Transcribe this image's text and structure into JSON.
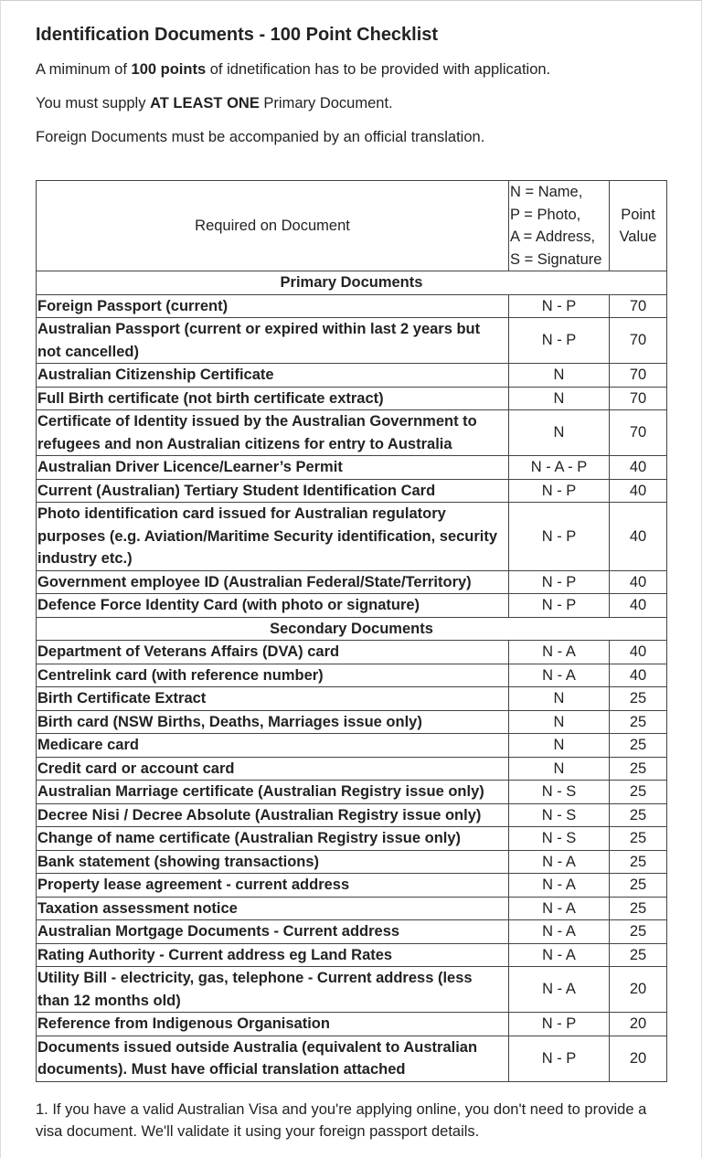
{
  "header": {
    "title": "Identification Documents - 100 Point Checklist"
  },
  "paragraphs": [
    [
      {
        "text": "A miminum of ",
        "bold": false
      },
      {
        "text": "100 points",
        "bold": true
      },
      {
        "text": " of idnetification has to be provided with application.",
        "bold": false
      }
    ],
    [
      {
        "text": "You must supply ",
        "bold": false
      },
      {
        "text": "AT LEAST ONE",
        "bold": true
      },
      {
        "text": " Primary Document.",
        "bold": false
      }
    ],
    [
      {
        "text": "Foreign Documents must be accompanied by an official translation.",
        "bold": false
      }
    ]
  ],
  "table": {
    "columns": {
      "document": "Required on Document",
      "code": [
        "N = Name,",
        "P = Photo,",
        "A = Address,",
        "S = Signature"
      ],
      "points": "Point Value"
    },
    "sections": [
      {
        "heading": "Primary Documents",
        "rows": [
          [
            "Foreign Passport (current)",
            "N - P",
            "70"
          ],
          [
            "Australian Passport (current or expired within last 2 years but not cancelled)",
            "N - P",
            "70"
          ],
          [
            "Australian Citizenship Certificate",
            "N",
            "70"
          ],
          [
            "Full Birth certificate (not birth certificate extract)",
            "N",
            "70"
          ],
          [
            "Certificate of Identity issued by the Australian Government to refugees and non Australian citizens for entry to Australia",
            "N",
            "70"
          ],
          [
            "Australian Driver Licence/Learner’s Permit",
            "N - A - P",
            "40"
          ],
          [
            "Current (Australian) Tertiary Student Identification Card",
            "N - P",
            "40"
          ],
          [
            "Photo identification card issued for Australian regulatory purposes (e.g. Aviation/Maritime Security identification, security industry etc.)",
            "N - P",
            "40"
          ],
          [
            "Government employee ID (Australian Federal/State/Territory)",
            "N - P",
            "40"
          ],
          [
            "Defence Force Identity Card (with photo or signature)",
            "N - P",
            "40"
          ]
        ]
      },
      {
        "heading": "Secondary Documents",
        "rows": [
          [
            "Department of Veterans Affairs (DVA) card",
            "N - A",
            "40"
          ],
          [
            "Centrelink card (with reference number)",
            "N - A",
            "40"
          ],
          [
            "Birth Certificate Extract",
            "N",
            "25"
          ],
          [
            "Birth card (NSW Births, Deaths, Marriages issue only)",
            "N",
            "25"
          ],
          [
            "Medicare card",
            "N",
            "25"
          ],
          [
            "Credit card or account card",
            "N",
            "25"
          ],
          [
            "Australian Marriage certificate (Australian Registry issue only)",
            "N - S",
            "25"
          ],
          [
            "Decree Nisi / Decree Absolute (Australian Registry issue only)",
            "N - S",
            "25"
          ],
          [
            "Change of name certificate (Australian Registry issue only)",
            "N - S",
            "25"
          ],
          [
            "Bank statement (showing transactions)",
            "N - A",
            "25"
          ],
          [
            "Property lease agreement - current address",
            "N - A",
            "25"
          ],
          [
            "Taxation assessment notice",
            "N - A",
            "25"
          ],
          [
            "Australian Mortgage Documents - Current address",
            "N - A",
            "25"
          ],
          [
            "Rating Authority - Current address eg Land Rates",
            "N - A",
            "25"
          ],
          [
            "Utility Bill - electricity, gas, telephone - Current address (less than 12 months old)",
            "N - A",
            "20"
          ],
          [
            "Reference from Indigenous Organisation",
            "N - P",
            "20"
          ],
          [
            "Documents issued outside Australia (equivalent to Australian documents). Must have official translation attached",
            "N - P",
            "20"
          ]
        ]
      }
    ]
  },
  "footnote": "1. If you have a valid Australian Visa and you're applying online, you don't need to provide a visa document. We'll validate it using your foreign passport details."
}
